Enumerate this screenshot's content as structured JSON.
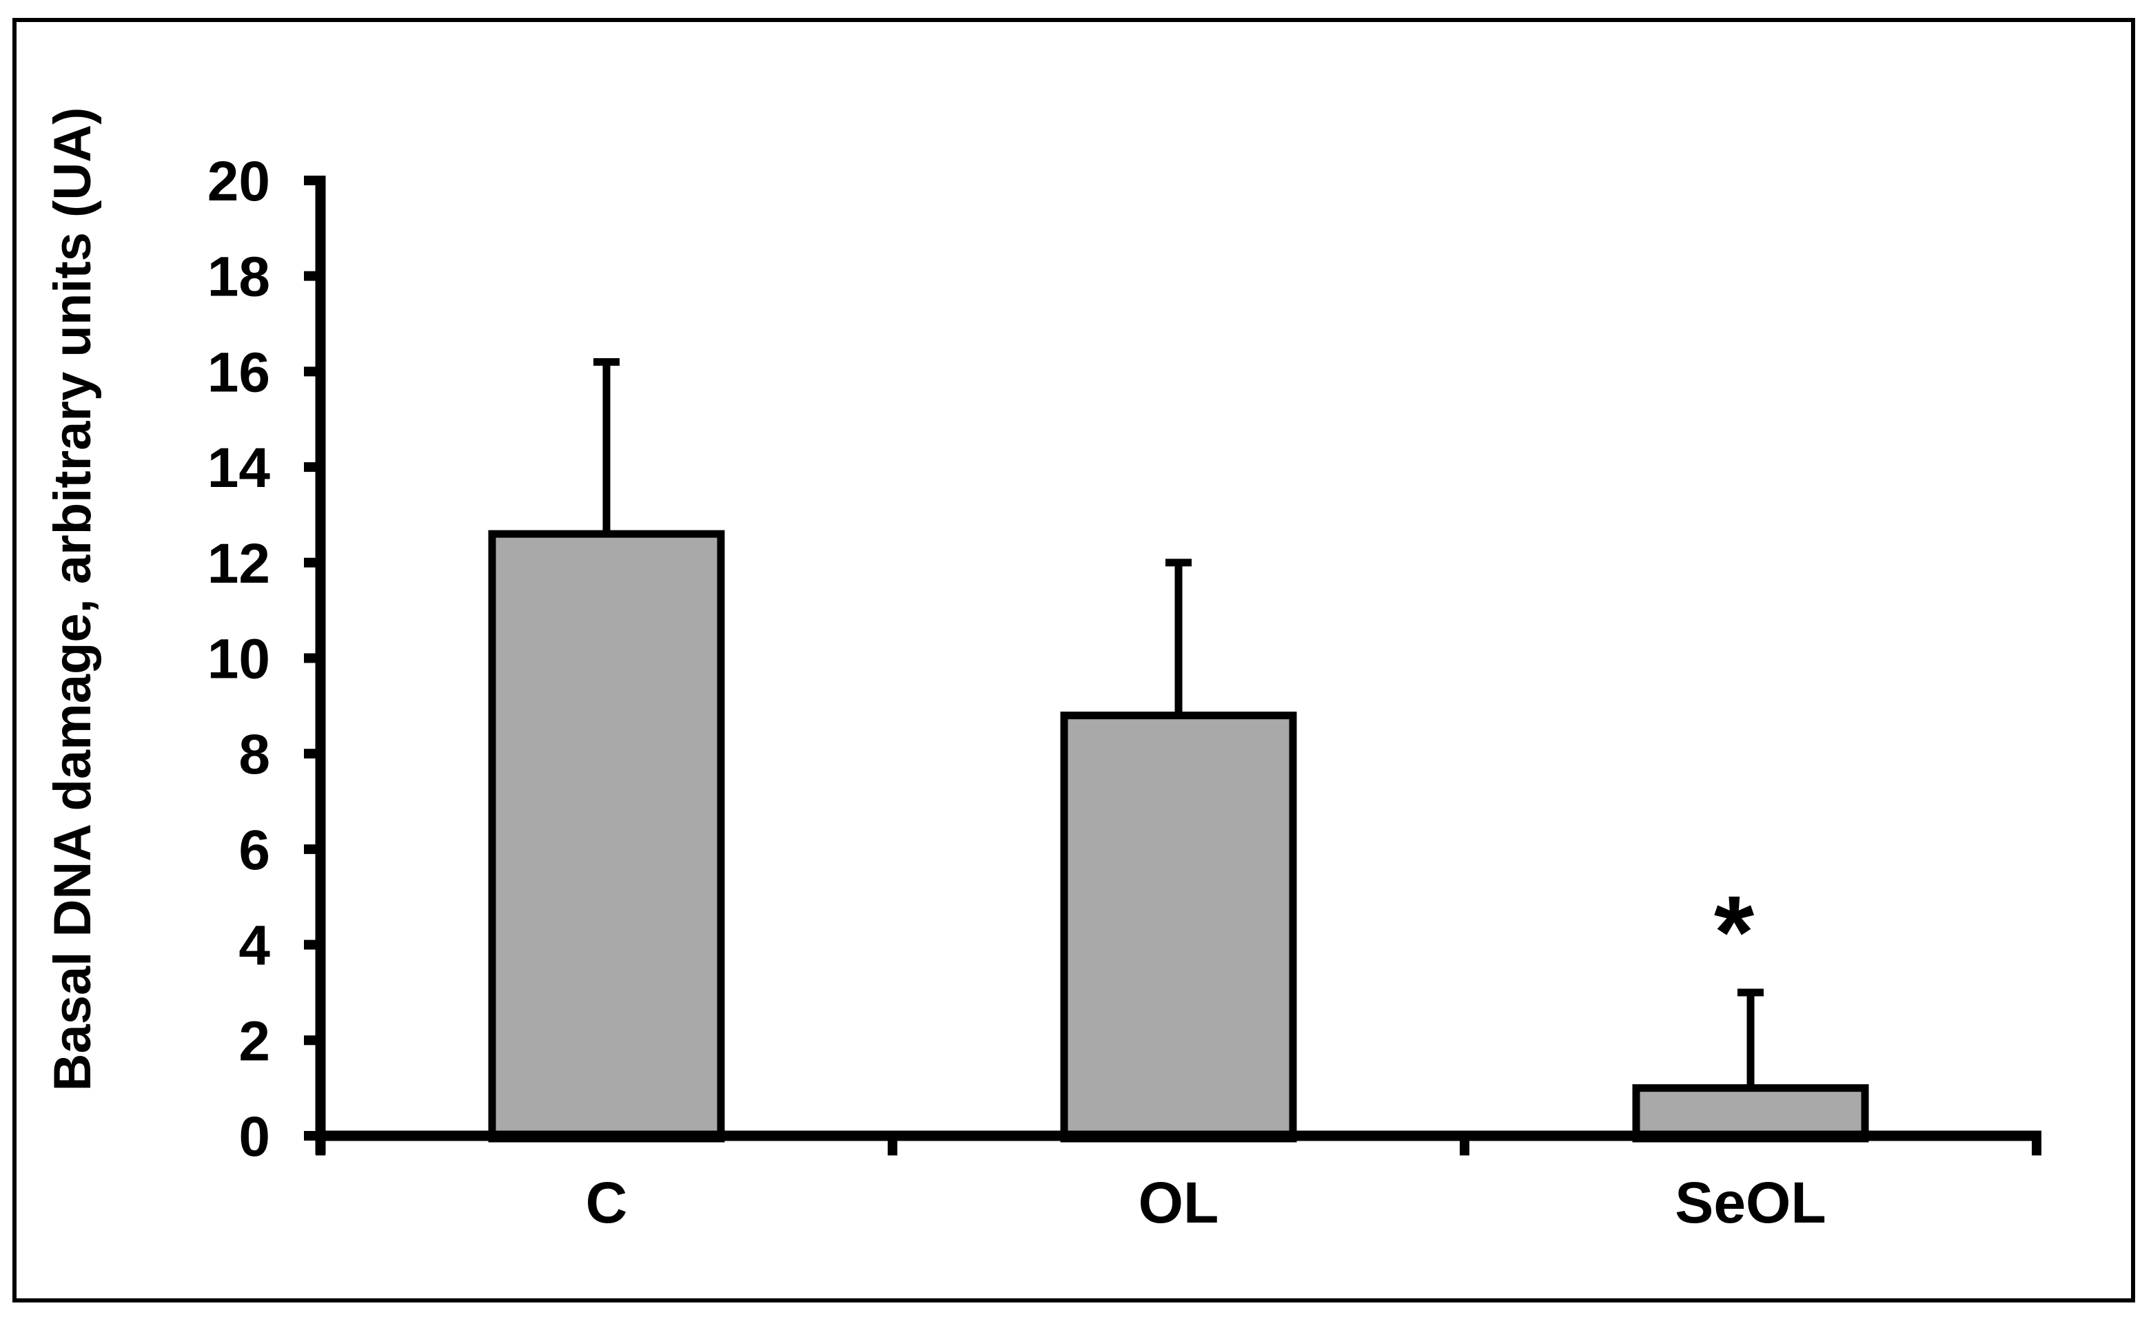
{
  "chart_data": {
    "type": "bar",
    "title": "",
    "ylabel": "Basal DNA damage, arbitrary units (UA)",
    "xlabel": "",
    "categories": [
      "C",
      "OL",
      "SeOL"
    ],
    "values": [
      12.6,
      8.8,
      1.0
    ],
    "error_plus": [
      3.6,
      3.2,
      2.0
    ],
    "yticks": [
      0,
      2,
      4,
      6,
      8,
      10,
      12,
      14,
      16,
      18,
      20
    ],
    "ylim": [
      0,
      20
    ],
    "grid": false,
    "legend": false,
    "bar_color": "#a9a9a9",
    "axis_color": "#000000",
    "annotations": [
      {
        "category": "SeOL",
        "text": "*",
        "y": 4.6
      }
    ]
  }
}
